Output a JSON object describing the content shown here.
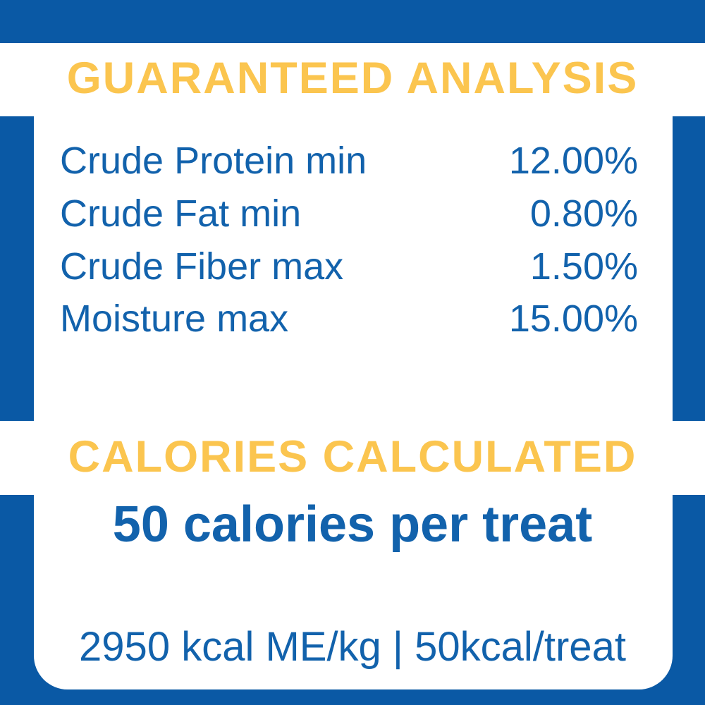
{
  "colors": {
    "blue_background": "#0A59A5",
    "blue_text": "#1262AC",
    "yellow_heading": "#FBC54F",
    "card_white": "#FFFFFF"
  },
  "guaranteed_analysis": {
    "heading": "GUARANTEED ANALYSIS",
    "rows": [
      {
        "label": "Crude Protein min",
        "value": "12.00%"
      },
      {
        "label": "Crude Fat min",
        "value": "0.80%"
      },
      {
        "label": "Crude Fiber max",
        "value": "1.50%"
      },
      {
        "label": "Moisture max",
        "value": "15.00%"
      }
    ]
  },
  "calories": {
    "heading": "CALORIES CALCULATED",
    "per_treat_line": "50 calories per treat",
    "kcal_line": "2950 kcal ME/kg | 50kcal/treat"
  }
}
